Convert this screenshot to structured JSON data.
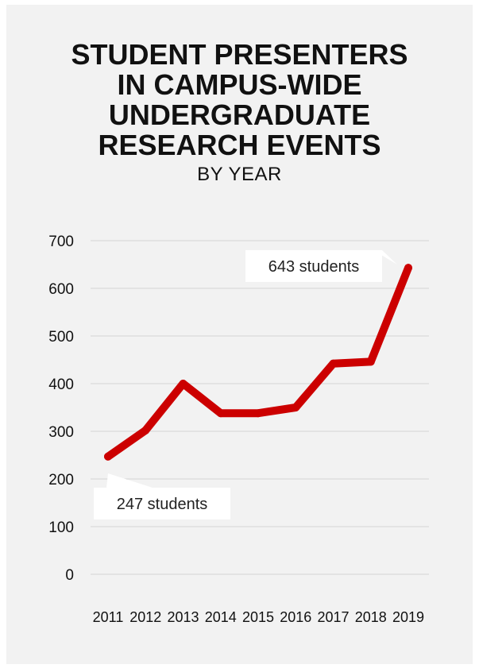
{
  "chart_data": {
    "type": "line",
    "title": "STUDENT PRESENTERS IN CAMPUS-WIDE UNDERGRADUATE RESEARCH EVENTS",
    "title_lines": [
      "STUDENT PRESENTERS",
      "IN CAMPUS-WIDE",
      "UNDERGRADUATE",
      "RESEARCH EVENTS"
    ],
    "subtitle": "BY YEAR",
    "xlabel": "",
    "ylabel": "",
    "categories": [
      "2011",
      "2012",
      "2013",
      "2014",
      "2015",
      "2016",
      "2017",
      "2018",
      "2019"
    ],
    "series": [
      {
        "values": [
          247,
          302,
          400,
          338,
          338,
          350,
          442,
          446,
          643
        ]
      }
    ],
    "yticks": [
      0,
      100,
      200,
      300,
      400,
      500,
      600,
      700
    ],
    "ylim": [
      0,
      700
    ],
    "grid": true,
    "line_color": "#cc0000",
    "annotations": [
      {
        "text": "643 students",
        "category": "2019",
        "value": 643
      },
      {
        "text": "247 students",
        "category": "2011",
        "value": 247
      }
    ]
  }
}
